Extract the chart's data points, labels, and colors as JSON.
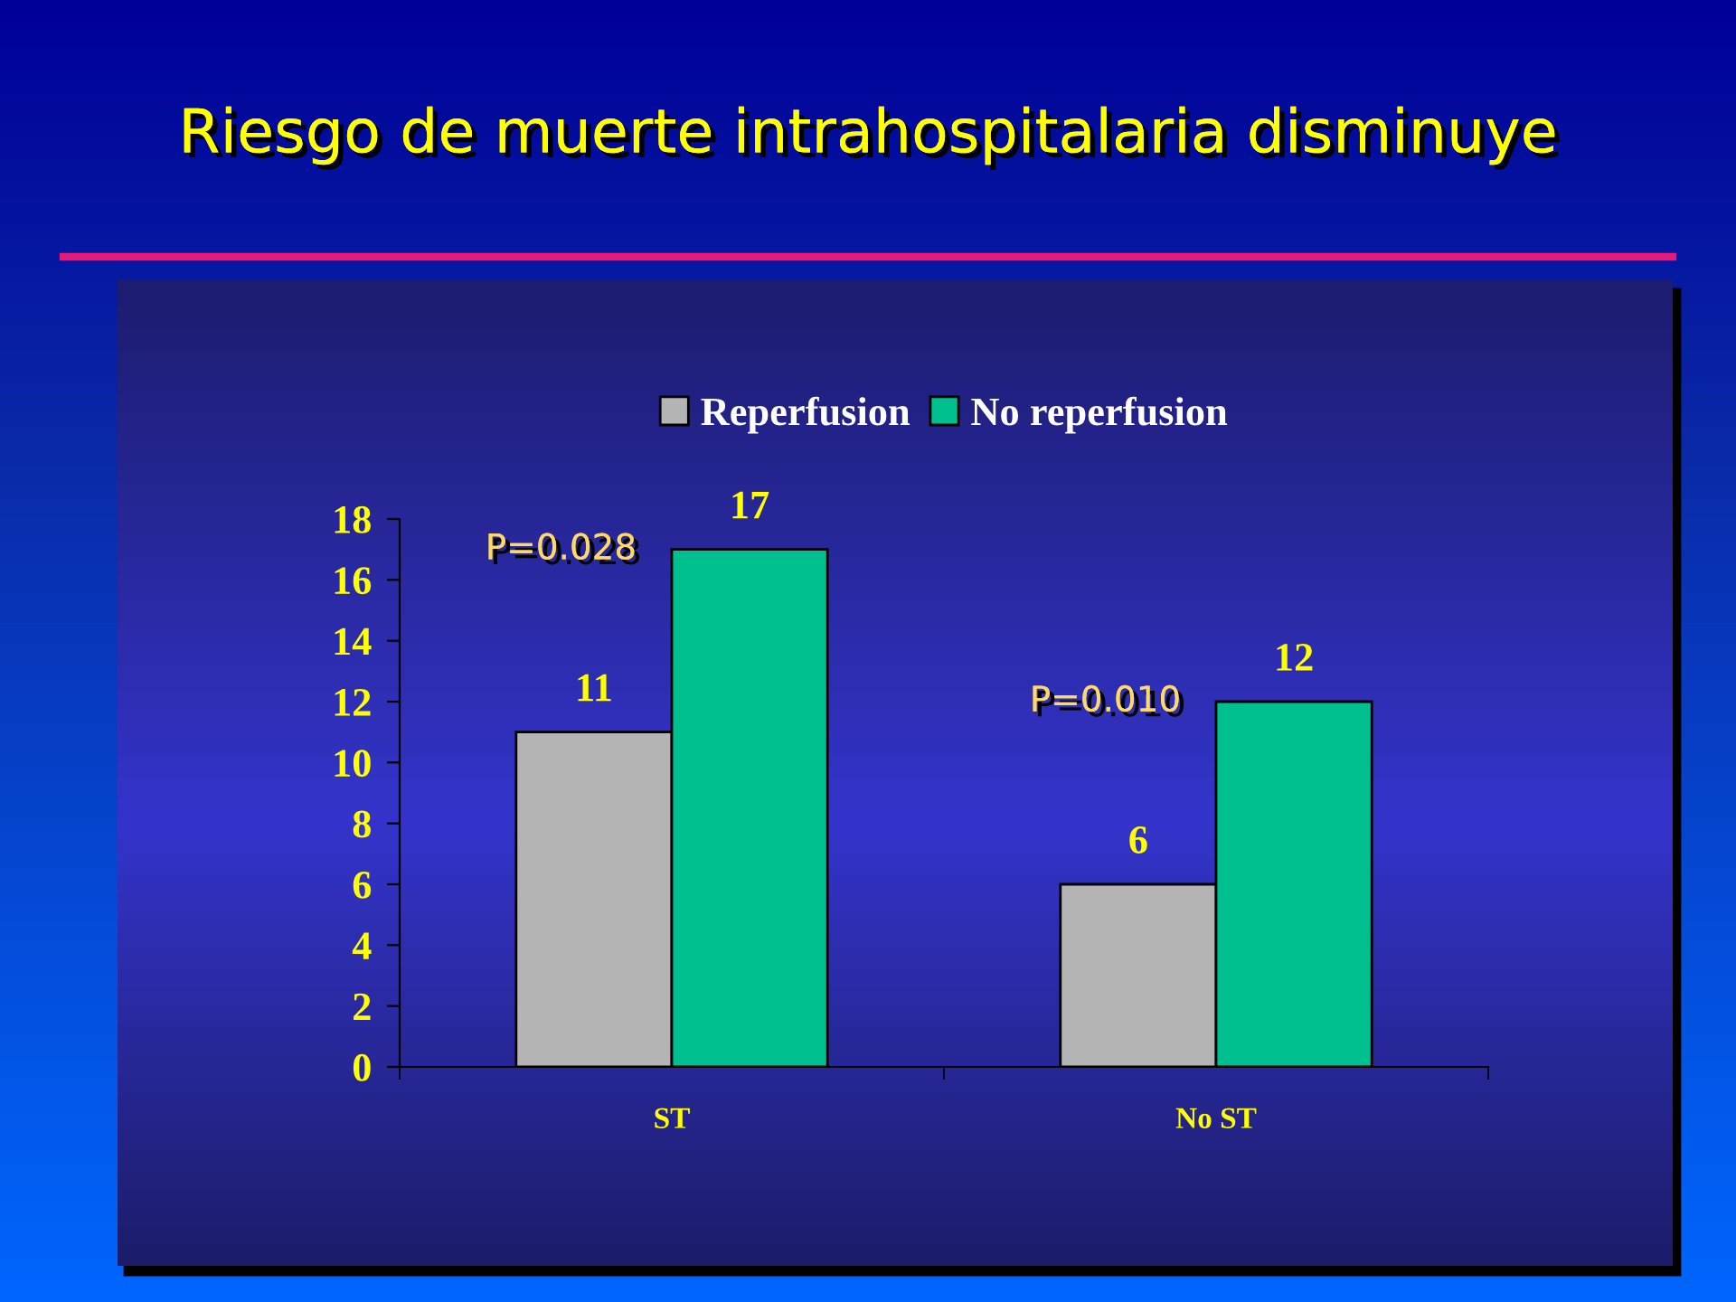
{
  "chart_data": {
    "type": "bar",
    "title": "Riesgo de muerte intrahospitalaria disminuye",
    "categories": [
      "ST",
      "No ST"
    ],
    "series": [
      {
        "name": "Reperfusion",
        "color": "#b4b4b4",
        "values": [
          11,
          6
        ]
      },
      {
        "name": "No reperfusion",
        "color": "#00c090",
        "values": [
          17,
          12
        ]
      }
    ],
    "ylim": [
      0,
      18
    ],
    "yticks": [
      0,
      2,
      4,
      6,
      8,
      10,
      12,
      14,
      16,
      18
    ],
    "data_labels": true,
    "legend": "top",
    "annotations": [
      "P=0.028",
      "P=0.010"
    ]
  }
}
